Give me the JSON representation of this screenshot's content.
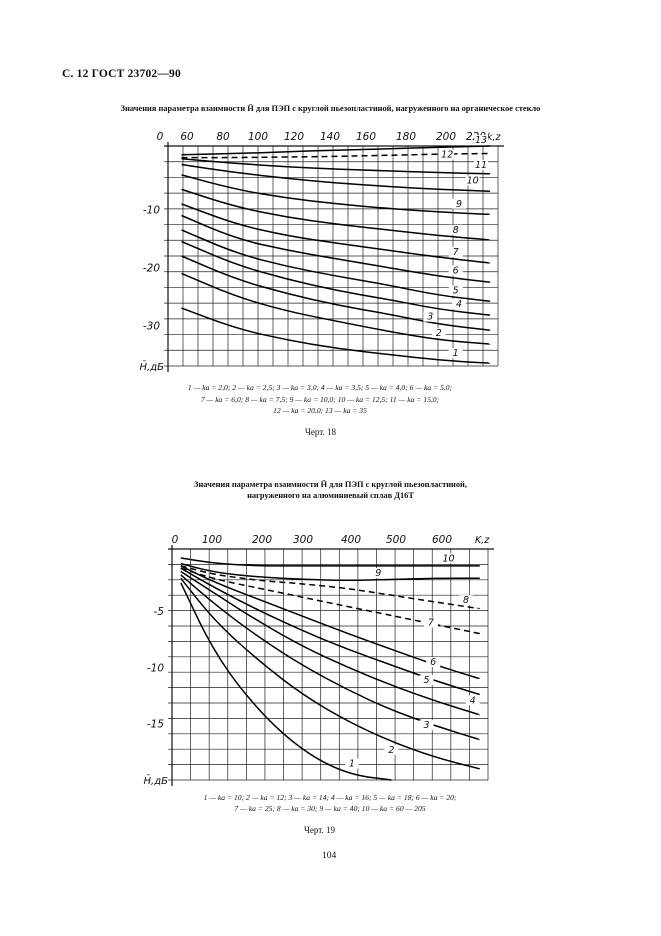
{
  "page": {
    "header": "С. 12 ГОСТ 23702—90",
    "page_number": "104"
  },
  "chart_data": [
    {
      "type": "line",
      "title": "Значения параметра взаимности H̄ для ПЭП с круглой пьезопластиной, нагруженного на органическое стекло",
      "xlabel": "k,z",
      "ylabel": "H̄,дБ",
      "xlim": [
        40,
        235
      ],
      "ylim": [
        -37,
        1
      ],
      "x_ticks": [
        "0",
        "60",
        "80",
        "100",
        "120",
        "140",
        "160",
        "180",
        "200",
        "220"
      ],
      "y_ticks": [
        "-10",
        "-20",
        "-30"
      ],
      "y_tick_values": [
        -10,
        -20,
        -30
      ],
      "grid": true,
      "series": [
        {
          "name": "13",
          "dash": "solid",
          "x": [
            48,
            80,
            110,
            140,
            170,
            200,
            230
          ],
          "y": [
            -0.5,
            -0.3,
            0.0,
            0.3,
            0.5,
            0.8,
            1.0
          ]
        },
        {
          "name": "12",
          "dash": "dashed",
          "x": [
            48,
            80,
            110,
            140,
            170,
            200,
            230
          ],
          "y": [
            -1.0,
            -1.0,
            -0.9,
            -0.8,
            -0.6,
            -0.4,
            -0.3
          ]
        },
        {
          "name": "11",
          "dash": "solid",
          "x": [
            48,
            80,
            110,
            140,
            170,
            200,
            230
          ],
          "y": [
            -1.2,
            -2.0,
            -2.6,
            -3.0,
            -3.3,
            -3.6,
            -3.8
          ]
        },
        {
          "name": "10",
          "dash": "solid",
          "x": [
            48,
            80,
            110,
            140,
            170,
            200,
            230
          ],
          "y": [
            -2.2,
            -3.6,
            -4.6,
            -5.4,
            -6.0,
            -6.5,
            -6.8
          ]
        },
        {
          "name": "9",
          "dash": "solid",
          "x": [
            48,
            80,
            110,
            140,
            170,
            200,
            230
          ],
          "y": [
            -4.0,
            -6.5,
            -8.0,
            -9.0,
            -9.8,
            -10.4,
            -10.8
          ]
        },
        {
          "name": "8",
          "dash": "solid",
          "x": [
            48,
            80,
            110,
            140,
            170,
            200,
            230
          ],
          "y": [
            -6.5,
            -9.5,
            -11.3,
            -12.5,
            -13.5,
            -14.5,
            -15.2
          ]
        },
        {
          "name": "7",
          "dash": "solid",
          "x": [
            48,
            80,
            110,
            140,
            170,
            200,
            230
          ],
          "y": [
            -9.0,
            -12.5,
            -14.5,
            -15.8,
            -17.0,
            -18.2,
            -19.2
          ]
        },
        {
          "name": "6",
          "dash": "solid",
          "x": [
            48,
            80,
            110,
            140,
            170,
            200,
            230
          ],
          "y": [
            -11.0,
            -15.0,
            -17.0,
            -18.5,
            -20.0,
            -21.5,
            -22.5
          ]
        },
        {
          "name": "5",
          "dash": "solid",
          "x": [
            48,
            80,
            110,
            140,
            170,
            200,
            230
          ],
          "y": [
            -13.5,
            -17.5,
            -19.8,
            -21.5,
            -23.0,
            -24.8,
            -25.8
          ]
        },
        {
          "name": "4",
          "dash": "solid",
          "x": [
            48,
            80,
            110,
            140,
            170,
            200,
            230
          ],
          "y": [
            -15.5,
            -19.5,
            -22.0,
            -24.0,
            -25.5,
            -27.2,
            -28.2
          ]
        },
        {
          "name": "3",
          "dash": "solid",
          "x": [
            48,
            80,
            110,
            140,
            170,
            200,
            230
          ],
          "y": [
            -18.0,
            -22.0,
            -24.5,
            -26.5,
            -28.0,
            -29.8,
            -30.8
          ]
        },
        {
          "name": "2",
          "dash": "solid",
          "x": [
            48,
            80,
            110,
            140,
            170,
            200,
            230
          ],
          "y": [
            -21.0,
            -25.0,
            -27.5,
            -29.3,
            -31.0,
            -32.5,
            -33.2
          ]
        },
        {
          "name": "1",
          "dash": "solid",
          "x": [
            48,
            80,
            110,
            140,
            170,
            200,
            230
          ],
          "y": [
            -27.0,
            -30.5,
            -32.5,
            -34.0,
            -35.0,
            -36.0,
            -36.5
          ]
        }
      ],
      "legend": [
        "1 — ka = 2,0;   2 — ka = 2,5;   3 — ka = 3,0;   4 — ka = 3,5;   5 — ka = 4,0;   6 — ka = 5,0;",
        "7 — ka = 6,0;   8 — ka = 7,5;   9 — ka = 10,0;   10 — ka = 12,5;   11 — ka = 15,0;",
        "12 — ka = 20,0;   13 — ka = 35"
      ],
      "caption": "Черт. 18"
    },
    {
      "type": "line",
      "title_line1": "Значения параметра взаимности H̄ для ПЭП с круглой пьезопластиной,",
      "title_line2": "нагруженного на алюминиевый сплав Д16Т",
      "xlabel": "K,z",
      "ylabel": "H̄,дБ",
      "xlim": [
        0,
        720
      ],
      "ylim": [
        -20,
        0.5
      ],
      "x_ticks": [
        "0",
        "100",
        "200",
        "300",
        "400",
        "500",
        "600"
      ],
      "y_ticks": [
        "-5",
        "-10",
        "-15"
      ],
      "y_tick_values": [
        -5,
        -10,
        -15
      ],
      "grid": true,
      "series": [
        {
          "name": "10",
          "dash": "solid",
          "x": [
            20,
            100,
            200,
            300,
            400,
            500,
            600,
            700
          ],
          "y": [
            -0.3,
            -0.8,
            -1.0,
            -1.0,
            -1.0,
            -1.0,
            -1.0,
            -1.0
          ]
        },
        {
          "name": "9",
          "dash": "solid",
          "x": [
            20,
            100,
            200,
            300,
            400,
            500,
            600,
            700
          ],
          "y": [
            -0.8,
            -1.6,
            -2.0,
            -2.2,
            -2.3,
            -2.2,
            -2.1,
            -2.1
          ]
        },
        {
          "name": "8",
          "dash": "dashed",
          "x": [
            20,
            100,
            200,
            300,
            400,
            500,
            600,
            700
          ],
          "y": [
            -1.0,
            -1.8,
            -2.3,
            -2.6,
            -3.0,
            -3.6,
            -4.2,
            -4.8
          ]
        },
        {
          "name": "7",
          "dash": "dashed",
          "x": [
            20,
            100,
            200,
            300,
            400,
            500,
            600,
            700
          ],
          "y": [
            -1.2,
            -2.2,
            -3.0,
            -3.8,
            -4.6,
            -5.4,
            -6.2,
            -7.0
          ]
        },
        {
          "name": "6",
          "dash": "solid",
          "x": [
            20,
            100,
            200,
            300,
            400,
            500,
            600,
            700
          ],
          "y": [
            -1.0,
            -2.5,
            -4.0,
            -5.5,
            -7.0,
            -8.4,
            -9.8,
            -11.0
          ]
        },
        {
          "name": "5",
          "dash": "solid",
          "x": [
            20,
            100,
            200,
            300,
            400,
            500,
            600,
            700
          ],
          "y": [
            -1.2,
            -3.0,
            -5.0,
            -6.8,
            -8.4,
            -9.8,
            -11.2,
            -12.4
          ]
        },
        {
          "name": "4",
          "dash": "solid",
          "x": [
            20,
            100,
            200,
            300,
            400,
            500,
            600,
            700
          ],
          "y": [
            -1.5,
            -3.5,
            -6.0,
            -8.2,
            -10.0,
            -11.6,
            -13.0,
            -14.2
          ]
        },
        {
          "name": "3",
          "dash": "solid",
          "x": [
            20,
            100,
            200,
            300,
            400,
            500,
            600,
            700
          ],
          "y": [
            -1.8,
            -4.5,
            -7.4,
            -9.9,
            -12.0,
            -13.8,
            -15.2,
            -16.4
          ]
        },
        {
          "name": "2",
          "dash": "solid",
          "x": [
            20,
            100,
            200,
            300,
            400,
            500,
            600,
            700
          ],
          "y": [
            -2.1,
            -6.0,
            -9.5,
            -12.5,
            -14.8,
            -16.6,
            -18.0,
            -19.0
          ]
        },
        {
          "name": "1",
          "dash": "solid",
          "x": [
            20,
            100,
            200,
            300,
            400,
            500
          ],
          "y": [
            -2.5,
            -9.0,
            -14.0,
            -17.5,
            -19.5,
            -20.0
          ]
        }
      ],
      "legend": [
        "1 — ka = 10;   2 — ka = 12;   3 — ka = 14;   4 — ka = 16;   5 — ka = 18;   6 — ka = 20;",
        "7 — ka = 25;   8 — ka = 30;   9 — ka = 40;   10 — ka = 60 — 205"
      ],
      "caption": "Черт. 19"
    }
  ]
}
